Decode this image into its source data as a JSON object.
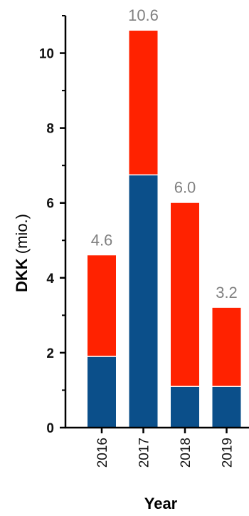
{
  "chart_data": {
    "type": "bar",
    "stacked": true,
    "categories": [
      "2016",
      "2017",
      "2018",
      "2019"
    ],
    "series": [
      {
        "color": "#0b4f8a",
        "values": [
          1.9,
          6.75,
          1.1,
          1.1
        ]
      },
      {
        "color": "#ff2200",
        "values": [
          2.7,
          3.85,
          4.9,
          2.1
        ]
      }
    ],
    "totals": [
      "4.6",
      "10.6",
      "6.0",
      "3.2"
    ],
    "ylabel_bold": "DKK",
    "ylabel_rest": " (mio.)",
    "xlabel": "Year",
    "ylim": [
      0,
      11
    ],
    "yticks": [
      0,
      2,
      4,
      6,
      8,
      10
    ],
    "yticks_minor": [
      1,
      3,
      5,
      7,
      9,
      11
    ],
    "grid": false,
    "legend": "none"
  }
}
